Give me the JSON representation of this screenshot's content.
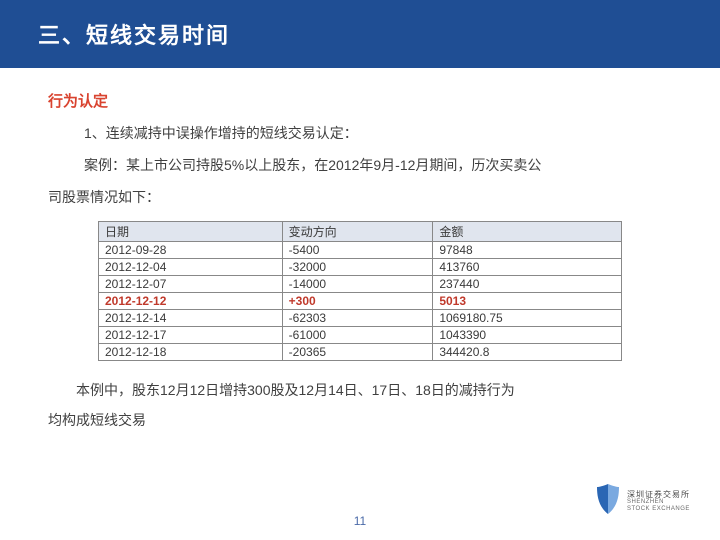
{
  "header": {
    "title": "三、短线交易时间"
  },
  "section_label": "行为认定",
  "intro_line": "1、连续减持中误操作增持的短线交易认定：",
  "case_line1": "案例：某上市公司持股5%以上股东，在2012年9月-12月期间，历次买卖公",
  "case_line2": "司股票情况如下：",
  "table": {
    "columns": [
      "日期",
      "变动方向",
      "金额"
    ],
    "rows": [
      {
        "cells": [
          "2012-09-28",
          "-5400",
          "97848"
        ],
        "highlight": false
      },
      {
        "cells": [
          "2012-12-04",
          "-32000",
          "413760"
        ],
        "highlight": false
      },
      {
        "cells": [
          "2012-12-07",
          "-14000",
          "237440"
        ],
        "highlight": false
      },
      {
        "cells": [
          "2012-12-12",
          "+300",
          "5013"
        ],
        "highlight": true
      },
      {
        "cells": [
          "2012-12-14",
          "-62303",
          "1069180.75"
        ],
        "highlight": false
      },
      {
        "cells": [
          "2012-12-17",
          "-61000",
          "1043390"
        ],
        "highlight": false
      },
      {
        "cells": [
          "2012-12-18",
          "-20365",
          "344420.8"
        ],
        "highlight": false
      }
    ],
    "header_bg": "#e0e5ee",
    "border_color": "#888888",
    "highlight_color": "#c0392b",
    "fontsize": 12
  },
  "conclusion_line1": "本例中，股东12月12日增持300股及12月14日、17日、18日的减持行为",
  "conclusion_line2": "均构成短线交易",
  "page_number": "11",
  "logo": {
    "cn": "深圳证券交易所",
    "en1": "SHENZHEN",
    "en2": "STOCK EXCHANGE",
    "color1": "#2a66b4",
    "color2": "#7aa9e0"
  },
  "colors": {
    "header_bg": "#1f4e94",
    "header_text": "#ffffff",
    "accent": "#d9432f",
    "body_text": "#404040",
    "pagenum": "#4a6aa8"
  }
}
